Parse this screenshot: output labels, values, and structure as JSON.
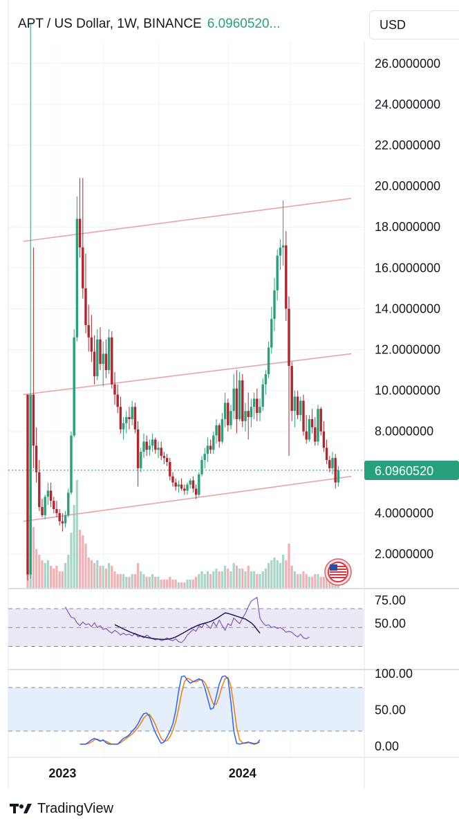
{
  "header": {
    "symbol_title": "APT / US Dollar, 1W, BINANCE",
    "last_price": "6.0960520...",
    "unit_selector": "USD"
  },
  "footer": {
    "brand": "TradingView"
  },
  "colors": {
    "up": "#26a17b",
    "down": "#b0262d",
    "trendline": "#e8a3a8",
    "rsi": "#7e57c2",
    "rsi_ma": "#1a1a5e",
    "stoch_k": "#2962ff",
    "stoch_d": "#f57c00",
    "price_line": "#26a17b"
  },
  "chart_data": [
    {
      "type": "candlestick",
      "title": "APT / US Dollar, 1W, BINANCE",
      "y_ticks": [
        "26.0000000",
        "24.0000000",
        "22.0000000",
        "20.0000000",
        "18.0000000",
        "16.0000000",
        "14.0000000",
        "12.0000000",
        "10.0000000",
        "8.0000000",
        "4.0000000",
        "2.0000000"
      ],
      "x_ticks": [
        "2023",
        "2024"
      ],
      "ylim": [
        0.3,
        27.5
      ],
      "last_price_label": "6.0960520",
      "last_price": 6.096052,
      "grid": true,
      "candles": [
        [
          9.8,
          9.8,
          0.7,
          1.0
        ],
        [
          1.0,
          28.0,
          0.8,
          9.8
        ],
        [
          9.8,
          17.0,
          6.2,
          7.3
        ],
        [
          7.3,
          8.2,
          5.5,
          6.0
        ],
        [
          6.0,
          6.6,
          4.1,
          4.3
        ],
        [
          4.3,
          4.7,
          3.8,
          3.9
        ],
        [
          3.9,
          4.9,
          3.7,
          4.8
        ],
        [
          4.8,
          5.5,
          4.4,
          5.1
        ],
        [
          5.1,
          5.5,
          4.3,
          4.6
        ],
        [
          4.6,
          4.8,
          4.0,
          4.2
        ],
        [
          4.2,
          4.6,
          3.8,
          4.0
        ],
        [
          4.0,
          4.2,
          3.4,
          3.6
        ],
        [
          3.6,
          4.0,
          3.1,
          3.5
        ],
        [
          3.5,
          4.1,
          3.3,
          3.9
        ],
        [
          3.9,
          5.2,
          3.8,
          5.0
        ],
        [
          5.0,
          8.0,
          4.9,
          7.8
        ],
        [
          7.8,
          13.0,
          7.7,
          12.6
        ],
        [
          12.6,
          19.5,
          12.4,
          18.4
        ],
        [
          18.4,
          20.4,
          16.5,
          17.0
        ],
        [
          17.0,
          20.4,
          14.5,
          15.0
        ],
        [
          15.0,
          16.7,
          12.8,
          13.2
        ],
        [
          13.2,
          14.2,
          11.9,
          12.6
        ],
        [
          12.6,
          13.7,
          11.4,
          11.9
        ],
        [
          11.9,
          12.7,
          10.3,
          10.7
        ],
        [
          10.7,
          13.0,
          10.5,
          12.5
        ],
        [
          12.5,
          13.1,
          11.0,
          11.3
        ],
        [
          11.3,
          12.4,
          10.2,
          11.8
        ],
        [
          11.8,
          12.5,
          10.6,
          11.0
        ],
        [
          11.0,
          13.0,
          10.8,
          12.6
        ],
        [
          12.6,
          12.9,
          10.1,
          10.3
        ],
        [
          10.3,
          10.9,
          9.3,
          9.8
        ],
        [
          9.8,
          10.3,
          8.9,
          9.2
        ],
        [
          9.2,
          9.7,
          7.9,
          8.1
        ],
        [
          8.1,
          8.7,
          7.6,
          8.4
        ],
        [
          8.4,
          9.0,
          7.9,
          8.7
        ],
        [
          8.7,
          9.2,
          8.1,
          8.6
        ],
        [
          8.6,
          9.5,
          8.3,
          9.2
        ],
        [
          9.2,
          9.4,
          7.9,
          8.1
        ],
        [
          8.1,
          8.5,
          5.3,
          6.2
        ],
        [
          6.2,
          7.2,
          6.0,
          7.0
        ],
        [
          7.0,
          7.9,
          6.7,
          7.5
        ],
        [
          7.5,
          7.8,
          6.8,
          7.1
        ],
        [
          7.1,
          7.6,
          6.8,
          7.3
        ],
        [
          7.3,
          7.9,
          7.0,
          7.6
        ],
        [
          7.6,
          7.7,
          6.9,
          7.1
        ],
        [
          7.1,
          7.5,
          6.7,
          7.2
        ],
        [
          7.2,
          7.5,
          6.6,
          6.8
        ],
        [
          6.8,
          7.0,
          6.4,
          6.7
        ],
        [
          6.7,
          6.9,
          6.3,
          6.5
        ],
        [
          6.5,
          6.7,
          5.6,
          5.8
        ],
        [
          5.8,
          6.0,
          5.3,
          5.5
        ],
        [
          5.5,
          5.7,
          5.1,
          5.3
        ],
        [
          5.3,
          5.6,
          5.0,
          5.4
        ],
        [
          5.4,
          5.7,
          5.1,
          5.2
        ],
        [
          5.2,
          5.4,
          4.9,
          5.1
        ],
        [
          5.1,
          5.5,
          4.9,
          5.4
        ],
        [
          5.4,
          5.7,
          5.2,
          5.6
        ],
        [
          5.6,
          5.8,
          5.0,
          5.2
        ],
        [
          5.2,
          5.4,
          4.7,
          4.9
        ],
        [
          4.9,
          6.0,
          4.8,
          5.9
        ],
        [
          5.9,
          6.8,
          5.8,
          6.6
        ],
        [
          6.6,
          7.2,
          6.2,
          6.9
        ],
        [
          6.9,
          7.7,
          6.5,
          7.3
        ],
        [
          7.3,
          7.6,
          6.9,
          7.1
        ],
        [
          7.1,
          8.0,
          6.9,
          7.8
        ],
        [
          7.8,
          8.6,
          7.4,
          8.3
        ],
        [
          8.3,
          8.4,
          7.2,
          7.5
        ],
        [
          7.5,
          8.9,
          7.4,
          8.6
        ],
        [
          8.6,
          9.9,
          8.2,
          9.4
        ],
        [
          9.4,
          9.6,
          8.0,
          8.3
        ],
        [
          8.3,
          9.3,
          8.1,
          9.0
        ],
        [
          9.0,
          10.8,
          8.6,
          10.1
        ],
        [
          10.1,
          11.0,
          7.9,
          8.6
        ],
        [
          8.6,
          10.9,
          8.5,
          10.5
        ],
        [
          10.5,
          10.8,
          8.2,
          8.5
        ],
        [
          8.5,
          9.4,
          8.0,
          9.0
        ],
        [
          9.0,
          9.9,
          7.6,
          8.7
        ],
        [
          8.7,
          9.6,
          8.2,
          9.2
        ],
        [
          9.2,
          9.9,
          8.6,
          9.6
        ],
        [
          9.6,
          10.1,
          8.5,
          8.9
        ],
        [
          8.9,
          9.6,
          8.5,
          9.2
        ],
        [
          9.2,
          10.6,
          9.0,
          10.3
        ],
        [
          10.3,
          11.0,
          9.8,
          10.8
        ],
        [
          10.8,
          12.4,
          10.6,
          12.1
        ],
        [
          12.1,
          14.1,
          11.8,
          13.5
        ],
        [
          13.5,
          15.5,
          12.9,
          14.9
        ],
        [
          14.9,
          16.9,
          14.4,
          16.6
        ],
        [
          16.6,
          17.4,
          15.9,
          17.0
        ],
        [
          17.0,
          19.3,
          16.1,
          17.1
        ],
        [
          17.1,
          17.8,
          13.4,
          14.0
        ],
        [
          14.0,
          14.6,
          6.8,
          11.2
        ],
        [
          11.2,
          11.4,
          8.5,
          9.0
        ],
        [
          9.0,
          10.0,
          8.2,
          9.7
        ],
        [
          9.7,
          10.0,
          8.6,
          8.8
        ],
        [
          8.8,
          9.7,
          8.5,
          9.5
        ],
        [
          9.5,
          9.8,
          7.8,
          8.0
        ],
        [
          8.0,
          8.8,
          7.4,
          7.6
        ],
        [
          7.6,
          8.8,
          7.5,
          8.6
        ],
        [
          8.6,
          9.1,
          7.9,
          8.2
        ],
        [
          8.2,
          8.7,
          7.3,
          7.5
        ],
        [
          7.5,
          9.3,
          7.3,
          9.1
        ],
        [
          9.1,
          9.2,
          7.8,
          8.0
        ],
        [
          8.0,
          8.5,
          7.0,
          7.2
        ],
        [
          7.2,
          7.6,
          6.4,
          6.6
        ],
        [
          6.6,
          6.8,
          6.0,
          6.2
        ],
        [
          6.2,
          7.0,
          5.9,
          6.7
        ],
        [
          6.7,
          6.9,
          5.2,
          5.5
        ],
        [
          5.5,
          6.3,
          5.3,
          6.1
        ]
      ],
      "trendlines": [
        {
          "from": [
            -1.5,
            17.3
          ],
          "to": [
            111.5,
            19.4
          ]
        },
        {
          "from": [
            -1.5,
            9.8
          ],
          "to": [
            111.5,
            11.8
          ]
        },
        {
          "from": [
            -1.5,
            3.6
          ],
          "to": [
            111.5,
            5.8
          ]
        }
      ]
    },
    {
      "type": "bar",
      "title": "Volume",
      "values": [
        1.3,
        3.7,
        2.2,
        1.4,
        1.2,
        1.0,
        0.9,
        1.0,
        0.8,
        0.7,
        0.8,
        0.6,
        0.6,
        0.9,
        1.2,
        2.0,
        3.0,
        3.9,
        2.1,
        1.9,
        1.6,
        1.1,
        1.0,
        0.9,
        1.0,
        0.8,
        0.8,
        0.7,
        0.9,
        0.8,
        0.6,
        0.5,
        0.5,
        0.5,
        0.4,
        0.4,
        0.5,
        0.5,
        0.9,
        0.6,
        0.5,
        0.4,
        0.4,
        0.5,
        0.4,
        0.4,
        0.3,
        0.3,
        0.3,
        0.4,
        0.3,
        0.3,
        0.2,
        0.2,
        0.2,
        0.3,
        0.3,
        0.3,
        0.4,
        0.5,
        0.6,
        0.5,
        0.6,
        0.5,
        0.6,
        0.7,
        0.6,
        0.6,
        0.8,
        0.7,
        0.6,
        0.9,
        0.8,
        0.7,
        0.7,
        0.6,
        0.8,
        0.6,
        0.6,
        0.5,
        0.5,
        0.6,
        0.7,
        0.9,
        1.0,
        1.1,
        1.0,
        0.9,
        1.2,
        1.0,
        1.6,
        0.8,
        0.6,
        0.5,
        0.5,
        0.6,
        0.5,
        0.4,
        0.4,
        0.5,
        0.5,
        0.4,
        0.4,
        0.4,
        0.3,
        0.3,
        0.4,
        0.3
      ]
    },
    {
      "type": "line",
      "title": "RSI",
      "y_ticks": [
        "75.00",
        "50.00"
      ],
      "band": [
        30,
        70
      ],
      "rsi_start_index": 13,
      "rsi_values": [
        72,
        66,
        61,
        60,
        55,
        52,
        56,
        53,
        54,
        51,
        55,
        50,
        52,
        48,
        49,
        46,
        44,
        47,
        45,
        42,
        44,
        42,
        43,
        41,
        44,
        40,
        41,
        39,
        42,
        40,
        38,
        37,
        38,
        36,
        37,
        39,
        37,
        36,
        38,
        35,
        34,
        37,
        42,
        45,
        48,
        46,
        52,
        50,
        55,
        52,
        49,
        56,
        51,
        58,
        52,
        47,
        54,
        52,
        60,
        57,
        54,
        60,
        65,
        72,
        78,
        80,
        82,
        60,
        55,
        52,
        53,
        50,
        51,
        49,
        50,
        48,
        45,
        46,
        45,
        42,
        40,
        43,
        39,
        38,
        40
      ],
      "ma_start_index": 30,
      "ma_values": [
        53,
        51.5,
        50,
        48.5,
        47,
        45.6,
        44.4,
        43.2,
        42.1,
        41,
        40.2,
        39.5,
        38.9,
        38.4,
        38,
        37.7,
        37.5,
        37.4,
        37.6,
        38,
        38.8,
        40,
        41.5,
        43.2,
        45,
        46.8,
        48.5,
        50,
        51.5,
        52.8,
        53.8,
        54.6,
        55.5,
        56.5,
        57.8,
        59.5,
        61.5,
        63.5,
        65.5,
        65,
        64,
        63,
        62,
        61,
        60,
        59,
        57,
        55,
        52,
        48,
        44
      ]
    },
    {
      "type": "line",
      "title": "Stoch RSI",
      "y_ticks": [
        "100.00",
        "50.00",
        "0.00"
      ],
      "band": [
        20,
        80
      ],
      "start_index": 18,
      "k_values": [
        2,
        2,
        2,
        5,
        8,
        10,
        8,
        6,
        8,
        4,
        2,
        2,
        2,
        2,
        6,
        10,
        12,
        15,
        20,
        24,
        30,
        38,
        44,
        45,
        40,
        28,
        18,
        10,
        3,
        5,
        12,
        20,
        30,
        48,
        75,
        95,
        96,
        90,
        86,
        88,
        90,
        92,
        90,
        80,
        65,
        50,
        52,
        68,
        85,
        95,
        96,
        92,
        60,
        20,
        3,
        2,
        3,
        4,
        5,
        3,
        2,
        3,
        8
      ],
      "d_values": [
        2,
        2,
        2,
        3,
        5,
        8,
        9,
        7,
        7,
        6,
        4,
        2,
        2,
        2,
        4,
        7,
        10,
        13,
        16,
        20,
        25,
        31,
        38,
        42,
        43,
        37,
        29,
        19,
        10,
        6,
        7,
        12,
        21,
        33,
        51,
        72,
        88,
        93,
        91,
        88,
        88,
        90,
        91,
        87,
        79,
        67,
        57,
        57,
        68,
        82,
        92,
        94,
        82,
        55,
        25,
        8,
        4,
        3,
        4,
        4,
        3,
        3,
        5
      ]
    }
  ]
}
